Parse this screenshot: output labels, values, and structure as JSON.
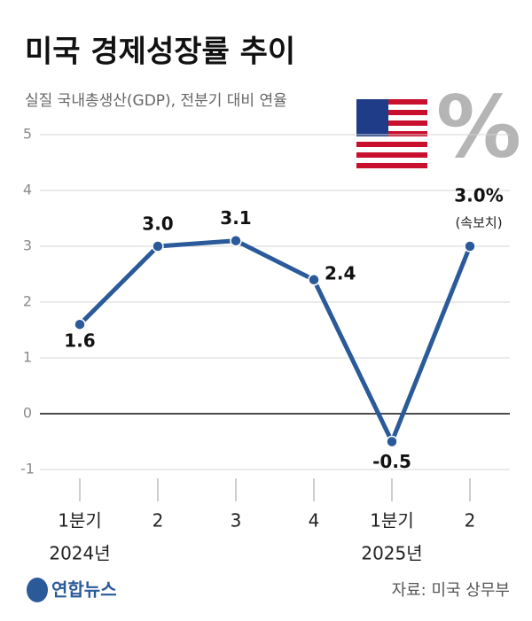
{
  "chart_data": {
    "type": "line",
    "title": "미국 경제성장률 추이",
    "subtitle": "실질 국내총생산(GDP), 전분기 대비 연율",
    "categories": [
      "1분기",
      "2",
      "3",
      "4",
      "1분기",
      "2"
    ],
    "year_labels": [
      "2024년",
      null,
      null,
      null,
      "2025년",
      null
    ],
    "series": [
      {
        "name": "미국 경제성장률",
        "color": "#2b5a9a",
        "values": [
          1.6,
          3.0,
          3.1,
          2.4,
          -0.5,
          3.0
        ],
        "value_labels": [
          "1.6",
          "3.0",
          "3.1",
          "2.4",
          "-0.5",
          "3.0%"
        ]
      }
    ],
    "annotation": "(속보치)",
    "ylim": [
      -1,
      5
    ],
    "yticks": [
      -1,
      0,
      1,
      2,
      3,
      4,
      5
    ],
    "grid": true,
    "source": "자료: 미국 상무부",
    "logo": "연합뉴스"
  }
}
